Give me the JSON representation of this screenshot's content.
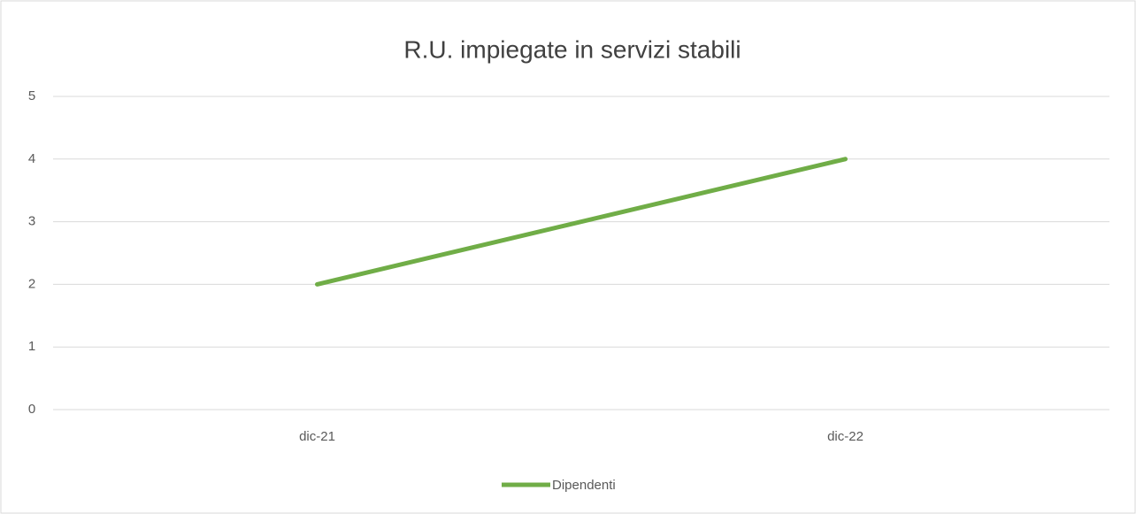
{
  "chart_data": {
    "type": "line",
    "title": "R.U. impiegate in servizi stabili",
    "categories": [
      "dic-21",
      "dic-22"
    ],
    "series": [
      {
        "name": "Dipendenti",
        "color": "#70ad47",
        "values": [
          2,
          4
        ]
      }
    ],
    "ylim": [
      0,
      5
    ],
    "yticks": [
      0,
      1,
      2,
      3,
      4,
      5
    ],
    "grid": true,
    "legend": "bottom"
  }
}
